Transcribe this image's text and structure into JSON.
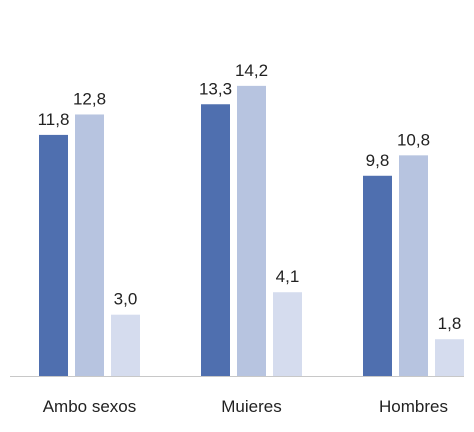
{
  "chart_data": {
    "type": "bar",
    "categories": [
      "Ambo sexos",
      "Muieres",
      "Hombres"
    ],
    "series": [
      {
        "values": [
          11.8,
          13.3,
          9.8
        ],
        "labels": [
          "11,8",
          "13,3",
          "9,8"
        ],
        "color": "#4f6faf"
      },
      {
        "values": [
          12.8,
          14.2,
          10.8
        ],
        "labels": [
          "12,8",
          "14,2",
          "10,8"
        ],
        "color": "#b7c4e0"
      },
      {
        "values": [
          3.0,
          4.1,
          1.8
        ],
        "labels": [
          "3,0",
          "4,1",
          "1,8"
        ],
        "color": "#d5dcee"
      }
    ],
    "ylim": [
      0,
      16.2
    ],
    "grid": false,
    "legend": "none",
    "axis_color": "#c8c8c8"
  }
}
